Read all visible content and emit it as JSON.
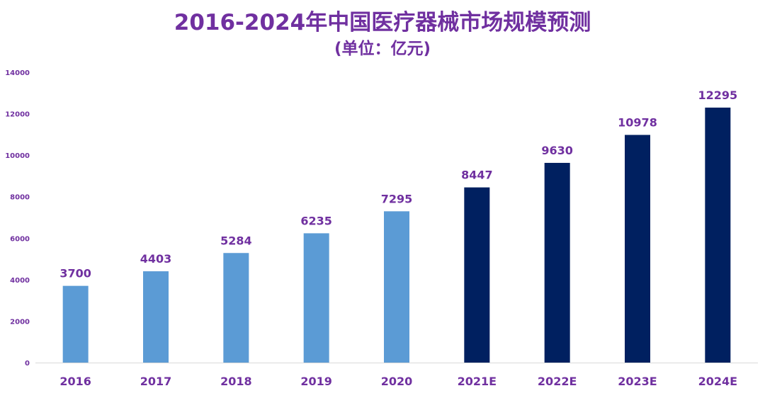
{
  "chart_data": {
    "type": "bar",
    "title": "2016-2024年中国医疗器械市场规模预测",
    "subtitle": "(单位：亿元)",
    "xlabel": "",
    "ylabel": "",
    "categories": [
      "2016",
      "2017",
      "2018",
      "2019",
      "2020",
      "2021E",
      "2022E",
      "2023E",
      "2024E"
    ],
    "values": [
      3700,
      4403,
      5284,
      6235,
      7295,
      8447,
      9630,
      10978,
      12295
    ],
    "ylim": [
      0,
      14000
    ],
    "yticks": [
      0,
      2000,
      4000,
      6000,
      8000,
      10000,
      12000,
      14000
    ],
    "grid": false,
    "legend": "none",
    "data_labels": true,
    "colors": {
      "actual": "#5B9BD5",
      "forecast": "#002060",
      "text": "#7030A0",
      "axis": "#D9D9D9"
    },
    "forecast_start_index": 5
  }
}
